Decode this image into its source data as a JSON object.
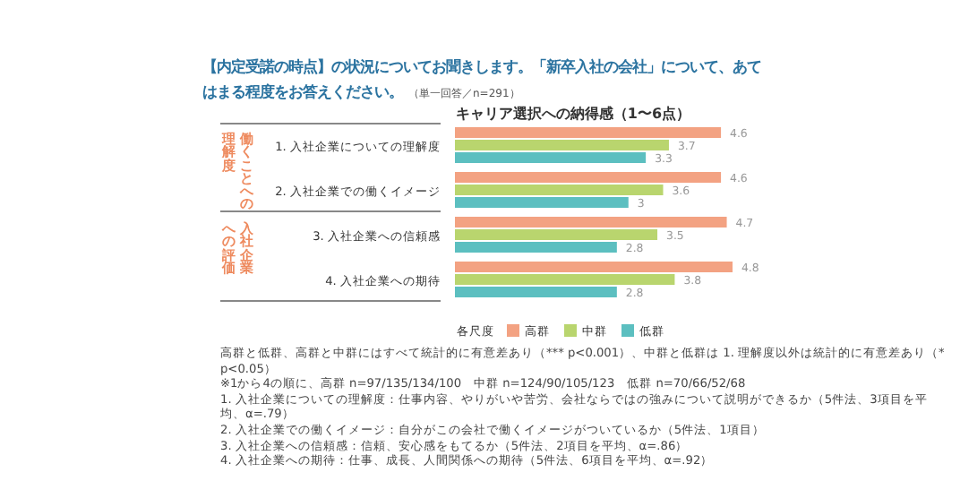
{
  "chart_data": {
    "type": "bar",
    "orientation": "horizontal",
    "data_labels": true,
    "legend": "bottom",
    "title": "【内定受諾の時点】の状況についてお聞きします。「新卒入社の会社」について、あてはまる程度をお答えください。",
    "subtitle": "キャリア選択への納得感（1〜6点）",
    "legend_title": "各尺度",
    "categories": [
      "1. 入社企業についての理解度",
      "2. 入社企業での働くイメージ",
      "3. 入社企業への信頼感",
      "4. 入社企業への期待"
    ],
    "series": [
      {
        "name": "高群",
        "color": "#f3a282",
        "values": [
          4.6,
          4.6,
          4.7,
          4.8
        ]
      },
      {
        "name": "中群",
        "color": "#b9d56e",
        "values": [
          3.7,
          3.6,
          3.5,
          3.8
        ]
      },
      {
        "name": "低群",
        "color": "#5cbfc0",
        "values": [
          3.3,
          3.0,
          2.8,
          2.8
        ]
      }
    ],
    "annotations": [
      "（単一回答／n=291）",
      "働くことへの",
      "理解度",
      "入社企業",
      "への評価",
      "高群と低群、高群と中群にはすべて統計的に有意差あり（*** p<0.001）、中群と低群は 1. 理解度以外は統計的に有意差あり（* p<0.05）",
      "※1から4の順に、高群 n=97/135/134/100　中群 n=124/90/105/123　低群 n=70/66/52/68",
      "1. 入社企業についての理解度：仕事内容、やりがいや苦労、会社ならではの強みについて説明ができるか（5件法、3項目を平均、α=.79）",
      "2. 入社企業での働くイメージ：自分がこの会社で働くイメージがついているか（5件法、1項目）",
      "3. 入社企業への信頼感：信頼、安心感をもてるか（5件法、2項目を平均、α=.86）",
      "4. 入社企業への期待：仕事、成長、人間関係への期待（5件法、6項目を平均、α=.92）"
    ]
  }
}
